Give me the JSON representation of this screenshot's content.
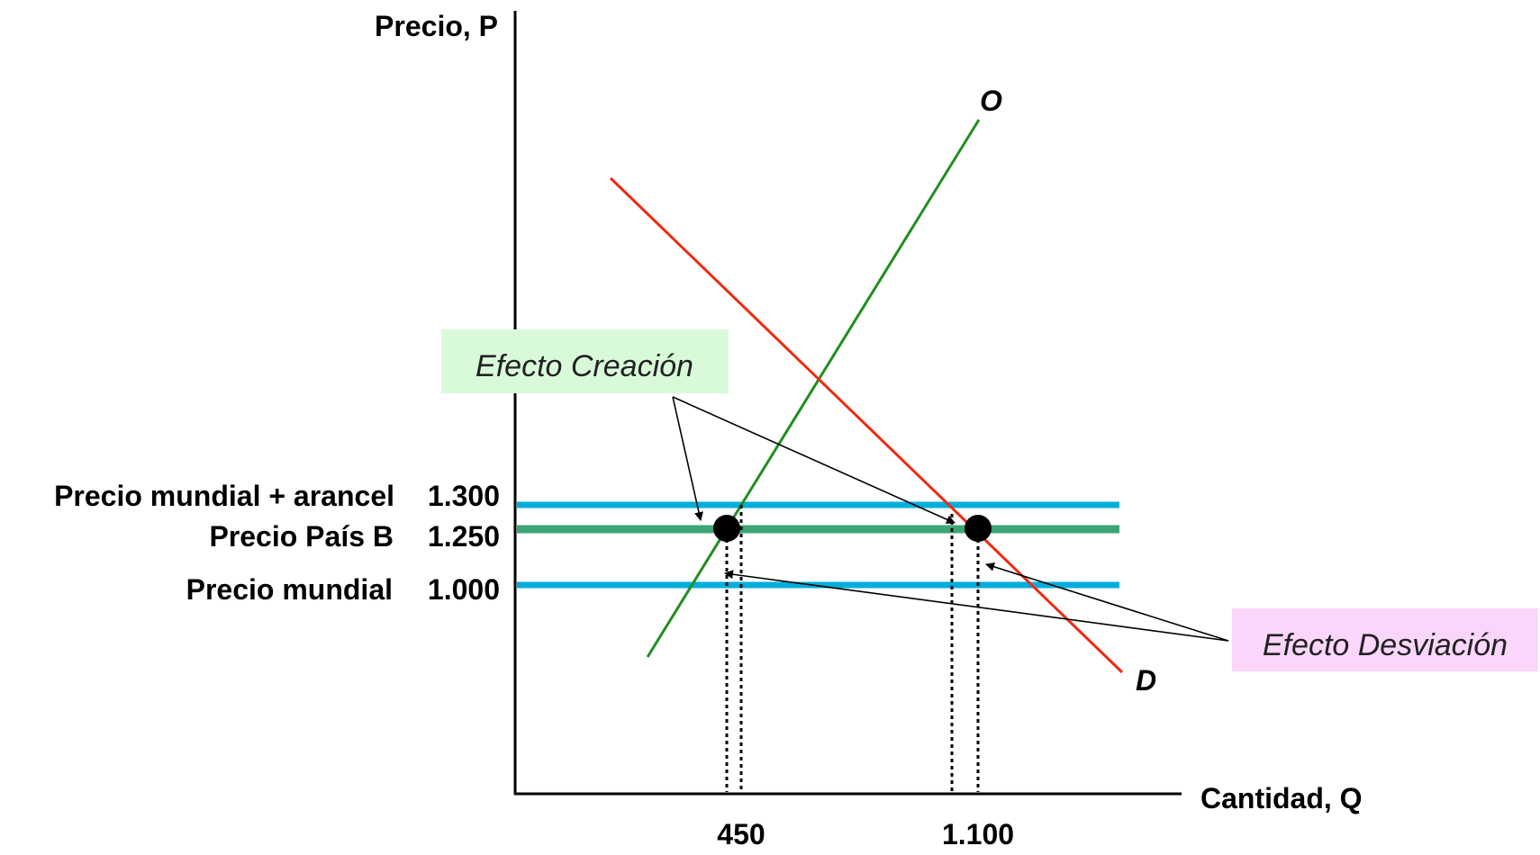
{
  "chart_data": {
    "type": "line",
    "title": "",
    "xlabel": "Cantidad, Q",
    "ylabel": "Precio, P",
    "grid": false,
    "x_ticks": [
      "450",
      "1.100"
    ],
    "price_levels": [
      {
        "name": "Precio mundial + arancel",
        "value_label": "1.300",
        "value": 1300,
        "color": "#00aedb"
      },
      {
        "name": "Precio País B",
        "value_label": "1.250",
        "value": 1250,
        "color": "#3da574"
      },
      {
        "name": "Precio mundial",
        "value_label": "1.000",
        "value": 1000,
        "color": "#00aedb"
      }
    ],
    "curves": [
      {
        "name": "O",
        "color": "#1f8f1f"
      },
      {
        "name": "D",
        "color": "#ee2a10"
      }
    ],
    "equilibrium_points": [
      {
        "curve": "O",
        "price": 1250,
        "quantity_label": "450"
      },
      {
        "curve": "D",
        "price": 1250,
        "quantity_label": "1.100"
      }
    ],
    "annotations": [
      {
        "text": "Efecto Creación",
        "background": "#d9fad9",
        "targets": [
          "O",
          "D"
        ],
        "price": 1300
      },
      {
        "text": "Efecto Desviación",
        "background": "#fbd6fb",
        "targets": [
          "O",
          "D"
        ],
        "price": 1000
      }
    ]
  }
}
